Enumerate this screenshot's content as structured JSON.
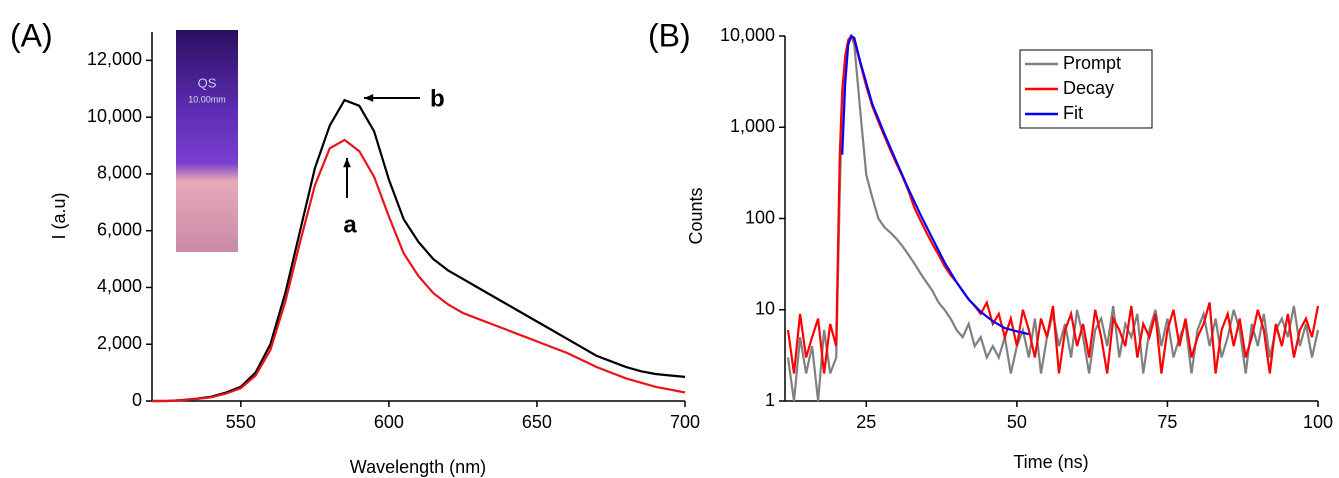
{
  "chart_data": [
    {
      "type": "line",
      "panel_label": "(A)",
      "x_label": "Wavelength (nm)",
      "y_label": "I (a.u)",
      "inset_labels": [
        "QS",
        "10.00mm"
      ],
      "xlim": [
        520,
        700
      ],
      "xticks": [
        550,
        600,
        650,
        700
      ],
      "ylim": [
        0,
        13000
      ],
      "yticks": [
        0,
        {
          "value": 2000,
          "label": "2,000"
        },
        {
          "value": 4000,
          "label": "4,000"
        },
        {
          "value": 6000,
          "label": "6,000"
        },
        {
          "value": 8000,
          "label": "8,000"
        },
        {
          "value": 10000,
          "label": "10,000"
        },
        {
          "value": 12000,
          "label": "12,000"
        }
      ],
      "x": [
        520,
        525,
        530,
        535,
        540,
        545,
        550,
        555,
        560,
        565,
        570,
        575,
        580,
        585,
        590,
        595,
        600,
        605,
        610,
        615,
        620,
        625,
        630,
        635,
        640,
        645,
        650,
        655,
        660,
        665,
        670,
        675,
        680,
        685,
        690,
        695,
        700
      ],
      "series": [
        {
          "name": "b",
          "color": "#000000",
          "values": [
            0,
            0,
            30,
            80,
            150,
            300,
            500,
            1000,
            2000,
            3800,
            6000,
            8200,
            9700,
            10600,
            10400,
            9500,
            7800,
            6400,
            5600,
            5000,
            4600,
            4300,
            4000,
            3700,
            3400,
            3100,
            2800,
            2500,
            2200,
            1900,
            1600,
            1400,
            1200,
            1050,
            950,
            900,
            850
          ]
        },
        {
          "name": "a",
          "color": "#e8131b",
          "values": [
            0,
            0,
            25,
            70,
            130,
            260,
            450,
            900,
            1800,
            3500,
            5600,
            7600,
            8900,
            9200,
            8800,
            7900,
            6500,
            5200,
            4400,
            3800,
            3400,
            3100,
            2900,
            2700,
            2500,
            2300,
            2100,
            1900,
            1700,
            1450,
            1200,
            1000,
            800,
            650,
            500,
            400,
            300
          ]
        }
      ]
    },
    {
      "type": "line",
      "panel_label": "(B)",
      "x_label": "Time (ns)",
      "y_label": "Counts",
      "log_y": true,
      "legend": "top-right",
      "xlim": [
        11.5,
        100
      ],
      "xticks": [
        25,
        50,
        75,
        100
      ],
      "ylim": [
        1,
        10000
      ],
      "yticks": [
        1,
        10,
        100,
        {
          "value": 1000,
          "label": "1,000"
        },
        {
          "value": 10000,
          "label": "10,000"
        }
      ],
      "x": [
        12,
        13,
        14,
        15,
        16,
        17,
        18,
        19,
        20,
        20.6,
        21,
        21.5,
        22,
        22.5,
        23,
        24,
        25,
        26,
        27,
        28,
        29,
        30,
        31,
        32,
        33,
        34,
        35,
        36,
        37,
        38,
        39,
        40,
        41,
        42,
        43,
        44,
        45,
        46,
        47,
        48,
        49,
        50,
        51,
        52,
        53,
        54,
        55,
        56,
        57,
        58,
        59,
        60,
        61,
        62,
        63,
        64,
        65,
        66,
        67,
        68,
        69,
        70,
        71,
        72,
        73,
        74,
        75,
        76,
        77,
        78,
        79,
        80,
        81,
        82,
        83,
        84,
        85,
        86,
        87,
        88,
        89,
        90,
        91,
        92,
        93,
        94,
        95,
        96,
        97,
        98,
        99,
        100
      ],
      "series": [
        {
          "name": "Prompt",
          "color": "#808080",
          "values": [
            3,
            1,
            5,
            2,
            4,
            1,
            6,
            2,
            3,
            200,
            1800,
            5500,
            9000,
            10000,
            8000,
            1500,
            300,
            170,
            100,
            80,
            70,
            60,
            50,
            40,
            32,
            25,
            20,
            16,
            12,
            10,
            8,
            6,
            5,
            7,
            4,
            5,
            3,
            4,
            3,
            5,
            2,
            4,
            6,
            3,
            8,
            2,
            5,
            9,
            4,
            7,
            3,
            10,
            5,
            2,
            6,
            8,
            4,
            11,
            3,
            7,
            5,
            9,
            2,
            6,
            10,
            4,
            8,
            3,
            5,
            7,
            2,
            6,
            9,
            4,
            8,
            3,
            5,
            10,
            6,
            2,
            7,
            4,
            9,
            3,
            6,
            8,
            5,
            11,
            4,
            7,
            3,
            6
          ]
        },
        {
          "name": "Decay",
          "color": "#ff0000",
          "values": [
            6,
            2,
            9,
            3,
            5,
            8,
            2,
            7,
            4,
            500,
            2500,
            6000,
            9000,
            10000,
            9000,
            5000,
            2800,
            1700,
            1150,
            800,
            560,
            400,
            290,
            200,
            130,
            95,
            70,
            52,
            40,
            30,
            24,
            20,
            16,
            13,
            11,
            9,
            12,
            7,
            9,
            5,
            8,
            4,
            10,
            6,
            3,
            8,
            5,
            11,
            2,
            6,
            9,
            4,
            7,
            3,
            10,
            5,
            2,
            8,
            6,
            4,
            11,
            3,
            7,
            5,
            9,
            2,
            6,
            10,
            4,
            8,
            3,
            5,
            7,
            12,
            2,
            6,
            9,
            4,
            8,
            3,
            5,
            10,
            6,
            2,
            7,
            4,
            9,
            3,
            6,
            8,
            5,
            11
          ]
        },
        {
          "name": "Fit",
          "color": "#0000ff",
          "x": [
            21,
            21.5,
            22,
            22.5,
            23,
            24,
            26,
            28,
            30,
            32,
            34,
            36,
            38,
            40,
            42,
            44,
            46,
            48,
            50,
            52
          ],
          "values": [
            500,
            3000,
            8000,
            10000,
            9500,
            5200,
            1800,
            850,
            420,
            210,
            110,
            60,
            33,
            20,
            13,
            9.5,
            7.5,
            6.3,
            5.8,
            5.4
          ]
        }
      ]
    }
  ]
}
